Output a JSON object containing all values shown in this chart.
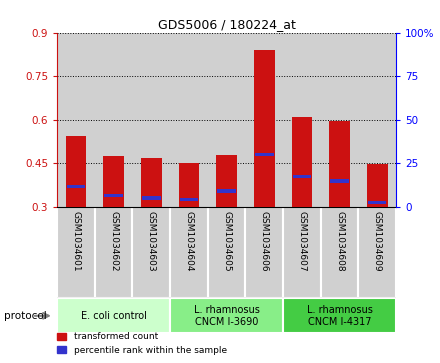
{
  "title": "GDS5006 / 180224_at",
  "samples": [
    "GSM1034601",
    "GSM1034602",
    "GSM1034603",
    "GSM1034604",
    "GSM1034605",
    "GSM1034606",
    "GSM1034607",
    "GSM1034608",
    "GSM1034609"
  ],
  "transformed_count": [
    0.545,
    0.475,
    0.47,
    0.45,
    0.48,
    0.84,
    0.61,
    0.595,
    0.448
  ],
  "percentile_rank_y": [
    0.37,
    0.34,
    0.33,
    0.325,
    0.355,
    0.48,
    0.405,
    0.39,
    0.315
  ],
  "bar_bottom": 0.3,
  "red_color": "#cc1111",
  "blue_color": "#3333cc",
  "ylim_left": [
    0.3,
    0.9
  ],
  "yticks_left": [
    0.3,
    0.45,
    0.6,
    0.75,
    0.9
  ],
  "ytick_labels_left": [
    "0.3",
    "0.45",
    "0.6",
    "0.75",
    "0.9"
  ],
  "ylim_right": [
    0,
    100
  ],
  "yticks_right": [
    0,
    25,
    50,
    75,
    100
  ],
  "ytick_labels_right": [
    "0",
    "25",
    "50",
    "75",
    "100%"
  ],
  "groups": [
    {
      "label": "E. coli control",
      "start": 0,
      "end": 2,
      "color": "#ccffcc"
    },
    {
      "label": "L. rhamnosus\nCNCM I-3690",
      "start": 3,
      "end": 5,
      "color": "#88ee88"
    },
    {
      "label": "L. rhamnosus\nCNCM I-4317",
      "start": 6,
      "end": 8,
      "color": "#44cc44"
    }
  ],
  "protocol_label": "protocol",
  "legend_red": "transformed count",
  "legend_blue": "percentile rank within the sample",
  "bar_width": 0.55,
  "cell_color": "#d0d0d0"
}
